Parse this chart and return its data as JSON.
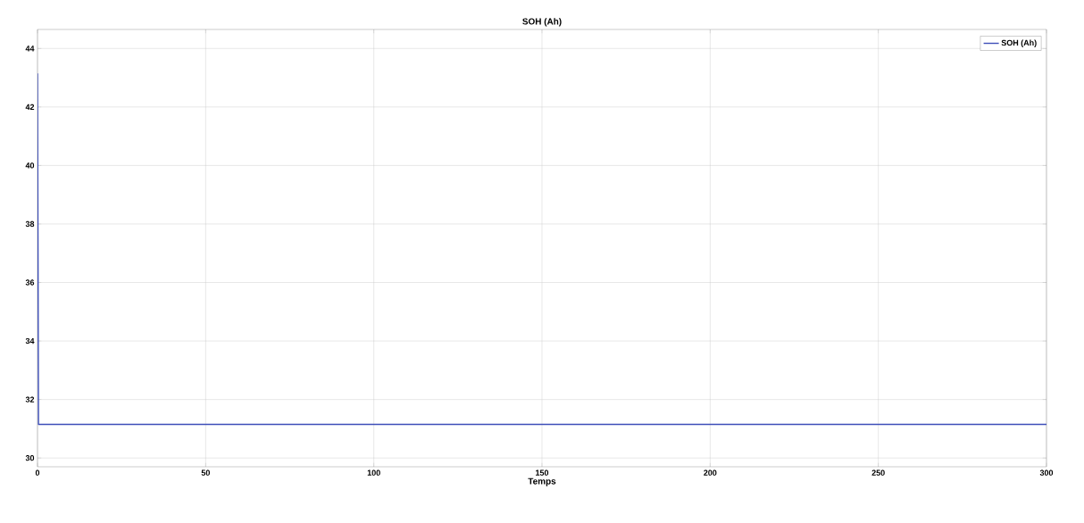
{
  "chart_data": {
    "type": "line",
    "title": "SOH (Ah)",
    "xlabel": "Temps",
    "x": [
      0,
      0.3,
      300
    ],
    "series": [
      {
        "name": "SOH (Ah)",
        "color": "#3d4eb8",
        "values": [
          43.15,
          31.15,
          31.15
        ]
      }
    ],
    "xlim": [
      0,
      300
    ],
    "xticks": [
      0,
      50,
      100,
      150,
      200,
      250,
      300
    ],
    "ylim": [
      29.7,
      44.65
    ],
    "yticks": [
      30,
      32,
      34,
      36,
      38,
      40,
      42,
      44
    ],
    "grid": true,
    "legend": "top right"
  }
}
